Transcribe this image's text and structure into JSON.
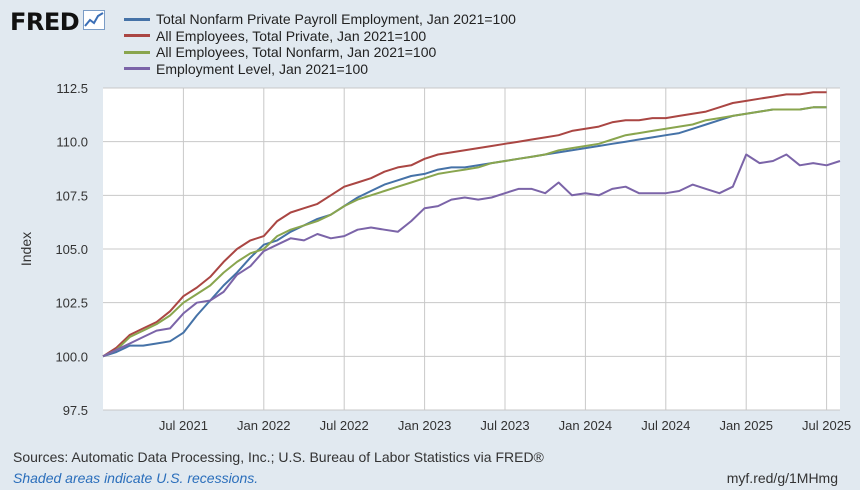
{
  "logo": {
    "text": "FRED",
    "icon": "trend-line-icon"
  },
  "footer": {
    "sources": "Sources: Automatic Data Processing, Inc.; U.S. Bureau of Labor Statistics via FRED®",
    "recessions": "Shaded areas indicate U.S. recessions.",
    "url": "myf.red/g/1MHmg"
  },
  "colors": {
    "background": "#e1e9f0",
    "plot": "#ffffff",
    "grid": "#c8c8c8"
  },
  "chart_data": {
    "type": "line",
    "title": "",
    "xlabel": "",
    "ylabel": "Index",
    "ylim": [
      97.5,
      112.5
    ],
    "xlim": [
      "2021-01",
      "2025-08"
    ],
    "yticks": [
      "97.5",
      "100.0",
      "102.5",
      "105.0",
      "107.5",
      "110.0",
      "112.5"
    ],
    "xticks": [
      "Jul 2021",
      "Jan 2022",
      "Jul 2022",
      "Jan 2023",
      "Jul 2023",
      "Jan 2024",
      "Jul 2024",
      "Jan 2025",
      "Jul 2025"
    ],
    "grid": true,
    "legend_position": "top",
    "series": [
      {
        "name": "Total Nonfarm Private Payroll Employment, Jan 2021=100",
        "color": "#4572a7",
        "start": "2021-01",
        "values": [
          100.0,
          100.2,
          100.5,
          100.5,
          100.6,
          100.7,
          101.1,
          101.9,
          102.6,
          103.3,
          103.9,
          104.6,
          105.2,
          105.4,
          105.8,
          106.1,
          106.4,
          106.6,
          107.0,
          107.4,
          107.7,
          108.0,
          108.2,
          108.4,
          108.5,
          108.7,
          108.8,
          108.8,
          108.9,
          109.0,
          109.1,
          109.2,
          109.3,
          109.4,
          109.5,
          109.6,
          109.7,
          109.8,
          109.9,
          110.0,
          110.1,
          110.2,
          110.3,
          110.4,
          110.6,
          110.8,
          111.0,
          111.2,
          111.3,
          111.4,
          111.5,
          111.5,
          111.5,
          111.6,
          111.6
        ]
      },
      {
        "name": "All Employees, Total Private, Jan 2021=100",
        "color": "#aa4643",
        "start": "2021-01",
        "values": [
          100.0,
          100.4,
          101.0,
          101.3,
          101.6,
          102.1,
          102.8,
          103.2,
          103.7,
          104.4,
          105.0,
          105.4,
          105.6,
          106.3,
          106.7,
          106.9,
          107.1,
          107.5,
          107.9,
          108.1,
          108.3,
          108.6,
          108.8,
          108.9,
          109.2,
          109.4,
          109.5,
          109.6,
          109.7,
          109.8,
          109.9,
          110.0,
          110.1,
          110.2,
          110.3,
          110.5,
          110.6,
          110.7,
          110.9,
          111.0,
          111.0,
          111.1,
          111.1,
          111.2,
          111.3,
          111.4,
          111.6,
          111.8,
          111.9,
          112.0,
          112.1,
          112.2,
          112.2,
          112.3,
          112.3
        ]
      },
      {
        "name": "All Employees, Total Nonfarm, Jan 2021=100",
        "color": "#89a54e",
        "start": "2021-01",
        "values": [
          100.0,
          100.3,
          100.9,
          101.2,
          101.5,
          101.9,
          102.5,
          102.9,
          103.3,
          103.9,
          104.4,
          104.8,
          105.0,
          105.6,
          105.9,
          106.1,
          106.3,
          106.6,
          107.0,
          107.3,
          107.5,
          107.7,
          107.9,
          108.1,
          108.3,
          108.5,
          108.6,
          108.7,
          108.8,
          109.0,
          109.1,
          109.2,
          109.3,
          109.4,
          109.6,
          109.7,
          109.8,
          109.9,
          110.1,
          110.3,
          110.4,
          110.5,
          110.6,
          110.7,
          110.8,
          111.0,
          111.1,
          111.2,
          111.3,
          111.4,
          111.5,
          111.5,
          111.5,
          111.6,
          111.6
        ]
      },
      {
        "name": "Employment Level, Jan 2021=100",
        "color": "#7b64a8",
        "start": "2021-01",
        "values": [
          100.0,
          100.3,
          100.6,
          100.9,
          101.2,
          101.3,
          102.0,
          102.5,
          102.6,
          103.0,
          103.8,
          104.2,
          104.9,
          105.2,
          105.5,
          105.4,
          105.7,
          105.5,
          105.6,
          105.9,
          106.0,
          105.9,
          105.8,
          106.3,
          106.9,
          107.0,
          107.3,
          107.4,
          107.3,
          107.4,
          107.6,
          107.8,
          107.8,
          107.6,
          108.1,
          107.5,
          107.6,
          107.5,
          107.8,
          107.9,
          107.6,
          107.6,
          107.6,
          107.7,
          108.0,
          107.8,
          107.6,
          107.9,
          109.4,
          109.0,
          109.1,
          109.4,
          108.9,
          109.0,
          108.9,
          109.1
        ]
      }
    ]
  }
}
